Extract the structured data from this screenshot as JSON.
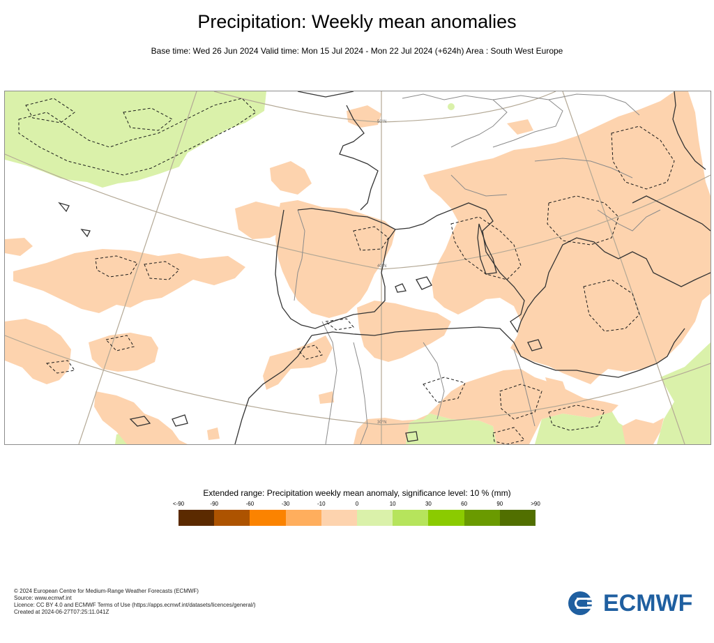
{
  "title": "Precipitation: Weekly mean anomalies",
  "subtitle": "Base time: Wed 26 Jun 2024 Valid time: Mon 15 Jul 2024 - Mon 22 Jul 2024 (+624h) Area : South West Europe",
  "map": {
    "graticule_labels": [
      "50°N",
      "40°N",
      "30°N"
    ],
    "colors": {
      "dry_anomaly": "#fdd3ae",
      "wet_anomaly": "#daf1aa",
      "coastline": "#333333",
      "border": "#8a8a8a",
      "graticule": "#b3a895",
      "significance_contour": "#1a1a1a"
    }
  },
  "legend": {
    "title": "Extended range: Precipitation weekly mean anomaly, significance level: 10 % (mm)",
    "ticks": [
      "<-90",
      "-90",
      "-60",
      "-30",
      "-10",
      "0",
      "10",
      "30",
      "60",
      "90",
      ">90"
    ],
    "colors": [
      "#5b2a00",
      "#ad5300",
      "#fb8300",
      "#ffae5d",
      "#fdd3ae",
      "#daf1aa",
      "#b6e45c",
      "#8bcb00",
      "#6a9a00",
      "#516f00"
    ]
  },
  "footer": {
    "copyright": "© 2024 European Centre for Medium-Range Weather Forecasts (ECMWF)",
    "source": "Source: www.ecmwf.int",
    "licence": "Licence: CC BY 4.0 and ECMWF Terms of Use (https://apps.ecmwf.int/datasets/licences/general/)",
    "created": "Created at 2024-06-27T07:25:11.041Z"
  },
  "logo": {
    "text": "ECMWF",
    "color": "#1f5fa0"
  }
}
